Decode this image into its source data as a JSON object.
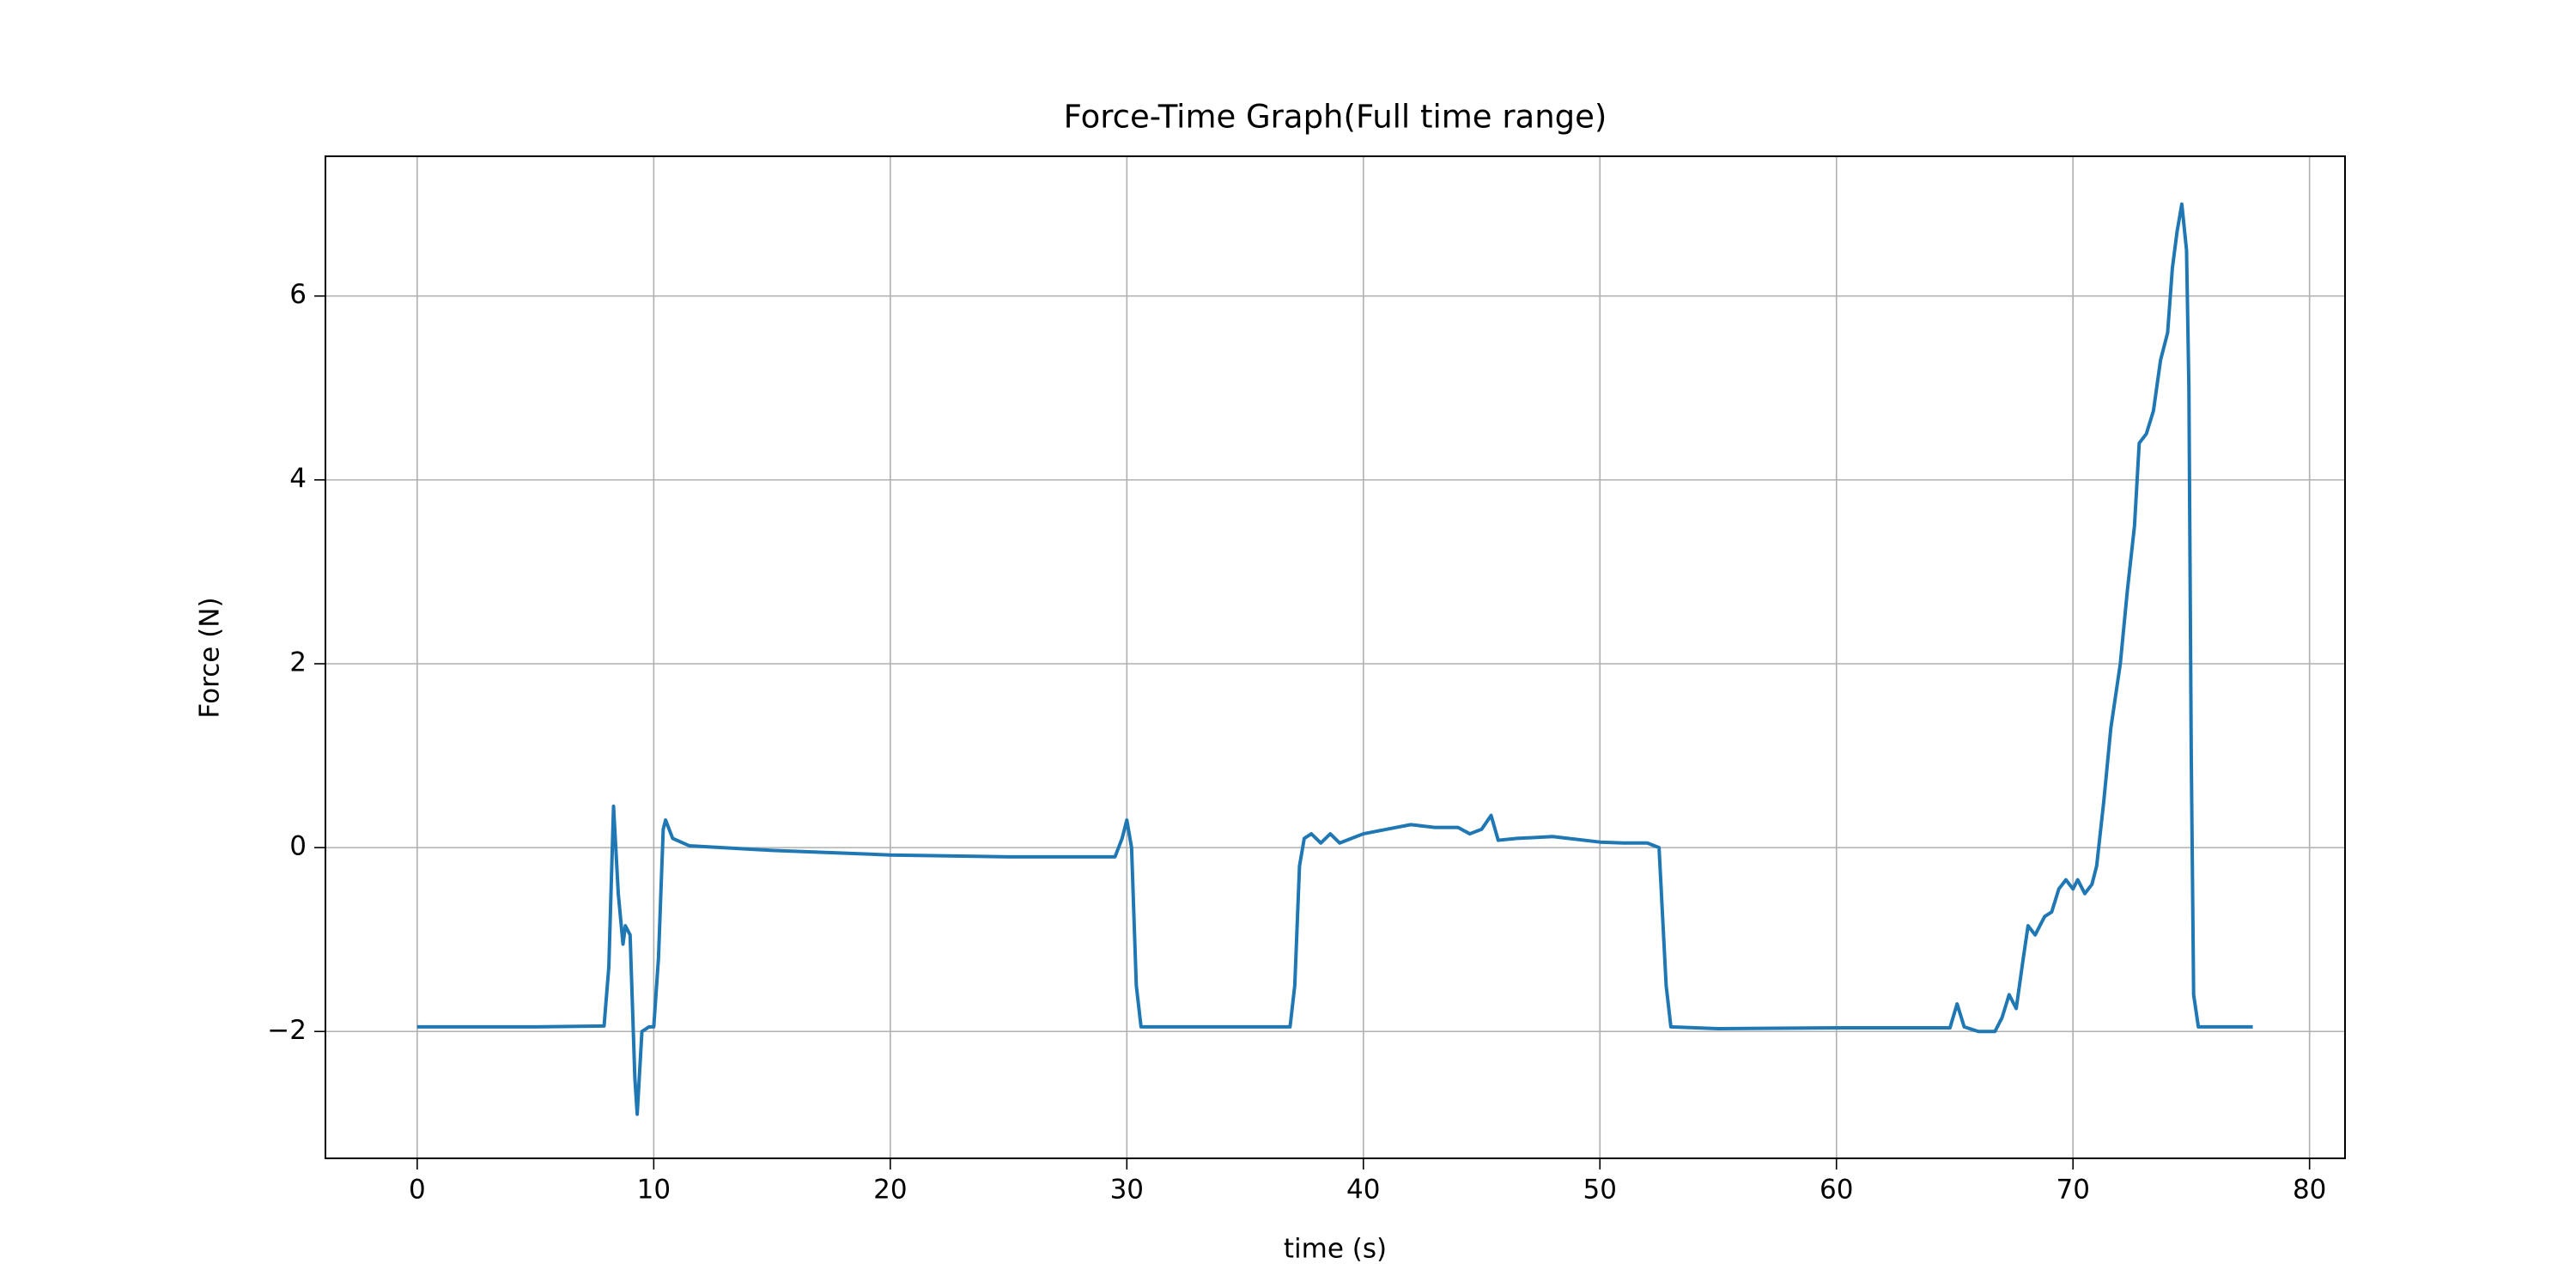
{
  "chart_data": {
    "type": "line",
    "title": "Force-Time Graph(Full time range)",
    "x_label": "time (s)",
    "y_label": "Force (N)",
    "xlim": [
      -3.88,
      81.5
    ],
    "ylim": [
      -3.38,
      7.52
    ],
    "xticks": [
      0,
      10,
      20,
      30,
      40,
      50,
      60,
      70,
      80
    ],
    "yticks": [
      {
        "value": -2,
        "label": "−2"
      },
      0,
      2,
      4,
      6
    ],
    "grid": true,
    "series": [
      {
        "color": "#1f77b4",
        "x": [
          0,
          5,
          7.9,
          8.1,
          8.3,
          8.5,
          8.7,
          8.8,
          9.0,
          9.2,
          9.3,
          9.5,
          9.8,
          10.0,
          10.2,
          10.4,
          10.5,
          10.8,
          11.5,
          15,
          20,
          25,
          29.5,
          29.8,
          30.0,
          30.2,
          30.4,
          30.6,
          33,
          36.9,
          37.1,
          37.3,
          37.5,
          37.8,
          38.2,
          38.6,
          39,
          39.5,
          40,
          41,
          42,
          43,
          44,
          44.5,
          45,
          45.4,
          45.7,
          46.5,
          48,
          50,
          51,
          52,
          52.5,
          52.8,
          53,
          55,
          60,
          64.8,
          65.1,
          65.4,
          66,
          66.7,
          67,
          67.3,
          67.6,
          67.9,
          68.1,
          68.4,
          68.8,
          69.1,
          69.4,
          69.7,
          70,
          70.2,
          70.5,
          70.8,
          71,
          71.3,
          71.6,
          72,
          72.3,
          72.6,
          72.8,
          73.1,
          73.4,
          73.7,
          74,
          74.2,
          74.4,
          74.6,
          74.8,
          74.9,
          75.0,
          75.1,
          75.3,
          77.6
        ],
        "values": [
          -1.95,
          -1.95,
          -1.94,
          -1.3,
          0.45,
          -0.5,
          -1.05,
          -0.85,
          -0.95,
          -2.5,
          -2.9,
          -2.0,
          -1.95,
          -1.95,
          -1.2,
          0.2,
          0.3,
          0.1,
          0.02,
          -0.03,
          -0.08,
          -0.1,
          -0.1,
          0.1,
          0.3,
          0,
          -1.5,
          -1.95,
          -1.95,
          -1.95,
          -1.5,
          -0.2,
          0.1,
          0.15,
          0.05,
          0.15,
          0.05,
          0.1,
          0.15,
          0.2,
          0.25,
          0.22,
          0.22,
          0.15,
          0.2,
          0.35,
          0.08,
          0.1,
          0.12,
          0.06,
          0.05,
          0.05,
          0,
          -1.5,
          -1.95,
          -1.97,
          -1.96,
          -1.96,
          -1.7,
          -1.95,
          -2.0,
          -2.0,
          -1.85,
          -1.6,
          -1.75,
          -1.2,
          -0.85,
          -0.95,
          -0.75,
          -0.7,
          -0.45,
          -0.35,
          -0.45,
          -0.35,
          -0.5,
          -0.4,
          -0.2,
          0.5,
          1.3,
          2,
          2.8,
          3.5,
          4.4,
          4.5,
          4.75,
          5.3,
          5.6,
          6.3,
          6.7,
          7.0,
          6.5,
          5.0,
          1.0,
          -1.6,
          -1.95,
          -1.95
        ]
      }
    ]
  }
}
